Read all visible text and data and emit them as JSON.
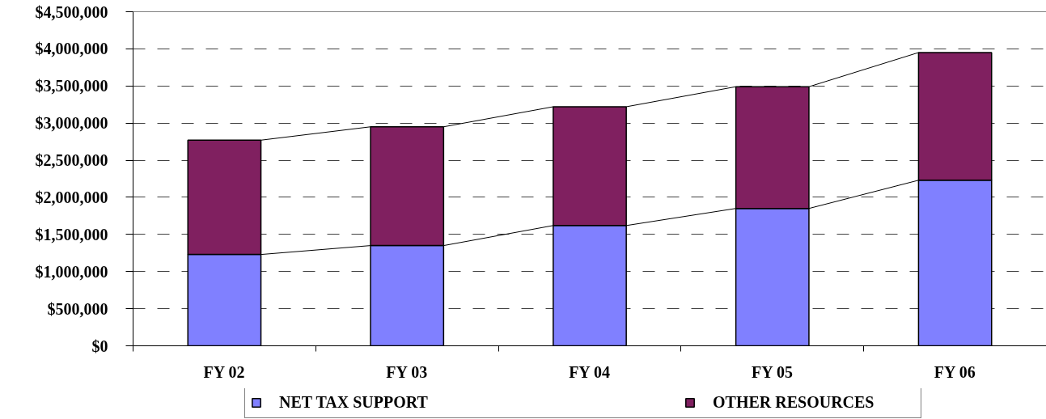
{
  "chart_data": {
    "type": "bar",
    "stacked": true,
    "categories": [
      "FY 02",
      "FY 03",
      "FY 04",
      "FY 05",
      "FY 06"
    ],
    "series": [
      {
        "name": "NET TAX SUPPORT",
        "color": "#8080ff",
        "values": [
          1230000,
          1350000,
          1620000,
          1850000,
          2230000
        ]
      },
      {
        "name": "OTHER RESOURCES",
        "color": "#802060",
        "values": [
          1540000,
          1600000,
          1600000,
          1640000,
          1720000
        ]
      }
    ],
    "ylim": [
      0,
      4500000
    ],
    "yticks": [
      {
        "value": 0,
        "label": "$0"
      },
      {
        "value": 500000,
        "label": "$500,000"
      },
      {
        "value": 1000000,
        "label": "$1,000,000"
      },
      {
        "value": 1500000,
        "label": "$1,500,000"
      },
      {
        "value": 2000000,
        "label": "$2,000,000"
      },
      {
        "value": 2500000,
        "label": "$2,500,000"
      },
      {
        "value": 3000000,
        "label": "$3,000,000"
      },
      {
        "value": 3500000,
        "label": "$3,500,000"
      },
      {
        "value": 4000000,
        "label": "$4,000,000"
      },
      {
        "value": 4500000,
        "label": "$4,500,000"
      }
    ],
    "grid": "y",
    "legend": "bottom"
  }
}
